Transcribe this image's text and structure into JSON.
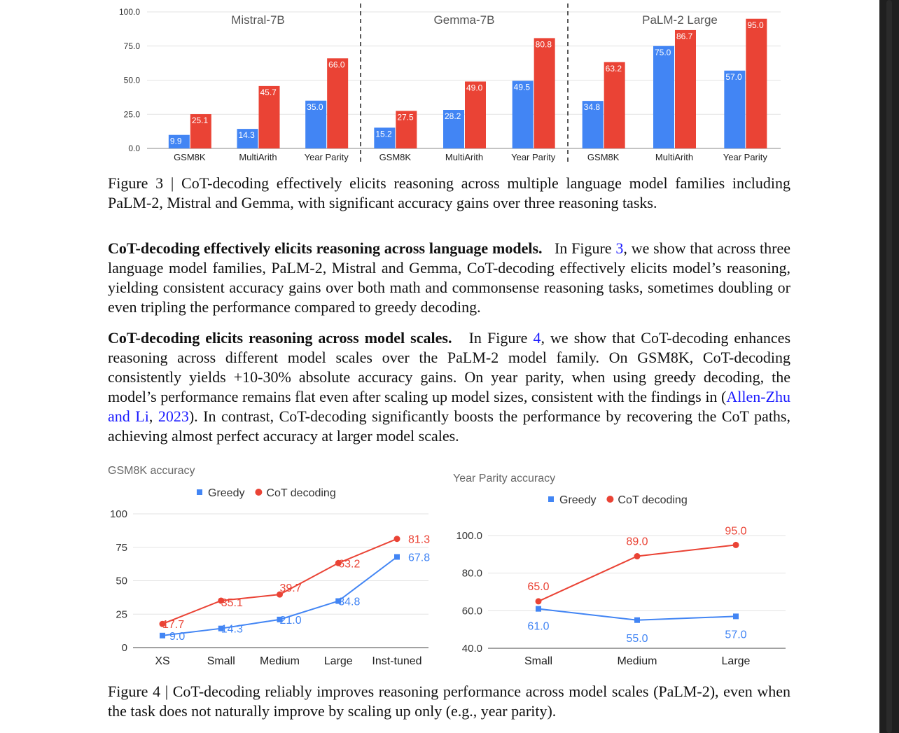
{
  "figure3": {
    "caption_label": "Figure 3",
    "caption_text": " | CoT-decoding effectively elicits reasoning across multiple language model families including PaLM-2, Mistral and Gemma, with significant accuracy gains over three reasoning tasks.",
    "y_ticks": [
      "0.0",
      "25.0",
      "50.0",
      "75.0",
      "100.0"
    ],
    "colors": {
      "greedy": "#4285f4",
      "cot": "#ea4335"
    }
  },
  "chart_data": [
    {
      "type": "bar",
      "title": "Mistral-7B",
      "categories": [
        "GSM8K",
        "MultiArith",
        "Year Parity"
      ],
      "series": [
        {
          "values": [
            9.9,
            14.3,
            35.0
          ],
          "color": "#4285f4"
        },
        {
          "values": [
            25.1,
            45.7,
            66.0
          ],
          "color": "#ea4335"
        }
      ],
      "ylim": [
        0,
        100
      ]
    },
    {
      "type": "bar",
      "title": "Gemma-7B",
      "categories": [
        "GSM8K",
        "MultiArith",
        "Year Parity"
      ],
      "series": [
        {
          "values": [
            15.2,
            28.2,
            49.5
          ],
          "color": "#4285f4"
        },
        {
          "values": [
            27.5,
            49.0,
            80.8
          ],
          "color": "#ea4335"
        }
      ],
      "ylim": [
        0,
        100
      ]
    },
    {
      "type": "bar",
      "title": "PaLM-2 Large",
      "categories": [
        "GSM8K",
        "MultiArith",
        "Year Parity"
      ],
      "series": [
        {
          "values": [
            34.8,
            75.0,
            57.0
          ],
          "color": "#4285f4"
        },
        {
          "values": [
            63.2,
            86.7,
            95.0
          ],
          "color": "#ea4335"
        }
      ],
      "ylim": [
        0,
        100
      ]
    },
    {
      "type": "line",
      "title": "GSM8K accuracy",
      "x": [
        "XS",
        "Small",
        "Medium",
        "Large",
        "Inst-tuned"
      ],
      "series": [
        {
          "name": "Greedy",
          "values": [
            9.0,
            14.3,
            21.0,
            34.8,
            67.8
          ],
          "color": "#4285f4",
          "labels": [
            "9.0",
            "14.3",
            "21.0",
            "34.8",
            "67.8"
          ]
        },
        {
          "name": "CoT decoding",
          "values": [
            17.7,
            35.1,
            39.7,
            63.2,
            81.3
          ],
          "color": "#ea4335",
          "labels": [
            "17.7",
            "35.1",
            "39.7",
            "63.2",
            "81.3"
          ]
        }
      ],
      "yticks": [
        "0",
        "25",
        "50",
        "75",
        "100"
      ],
      "ylim": [
        0,
        100
      ],
      "legend": "top"
    },
    {
      "type": "line",
      "title": "Year Parity accuracy",
      "x": [
        "Small",
        "Medium",
        "Large"
      ],
      "series": [
        {
          "name": "Greedy",
          "values": [
            61.0,
            55.0,
            57.0
          ],
          "color": "#4285f4",
          "labels": [
            "61.0",
            "55.0",
            "57.0"
          ]
        },
        {
          "name": "CoT decoding",
          "values": [
            65.0,
            89.0,
            95.0
          ],
          "color": "#ea4335",
          "labels": [
            "65.0",
            "89.0",
            "95.0"
          ]
        }
      ],
      "yticks": [
        "40.0",
        "60.0",
        "80.0",
        "100.0"
      ],
      "ylim": [
        40,
        100
      ],
      "legend": "top"
    }
  ],
  "para1": {
    "heading": "CoT-decoding effectively elicits reasoning across language models.",
    "pre": "In Figure ",
    "ref": "3",
    "post": ", we show that across three language model families, PaLM-2, Mistral and Gemma, CoT-decoding effectively elicits model’s reasoning, yielding consistent accuracy gains over both math and commonsense reasoning tasks, sometimes doubling or even tripling the performance compared to greedy decoding."
  },
  "para2": {
    "heading": "CoT-decoding elicits reasoning across model scales.",
    "pre": "In Figure ",
    "ref": "4",
    "mid": ", we show that CoT-decoding enhances reasoning across different model scales over the PaLM-2 model family. On GSM8K, CoT-decoding consistently yields +10-30% absolute accuracy gains. On year parity, when using greedy decoding, the model’s performance remains flat even after scaling up model sizes, consistent with the findings in (",
    "cite_author": "Allen-Zhu and Li",
    "cite_sep": ", ",
    "cite_year": "2023",
    "post": "). In contrast, CoT-decoding significantly boosts the performance by recovering the CoT paths, achieving almost perfect accuracy at larger model scales."
  },
  "figure4": {
    "caption_label": "Figure 4",
    "caption_text": " | CoT-decoding reliably improves reasoning performance across model scales (PaLM-2), even when the task does not naturally improve by scaling up only (e.g., year parity)."
  }
}
